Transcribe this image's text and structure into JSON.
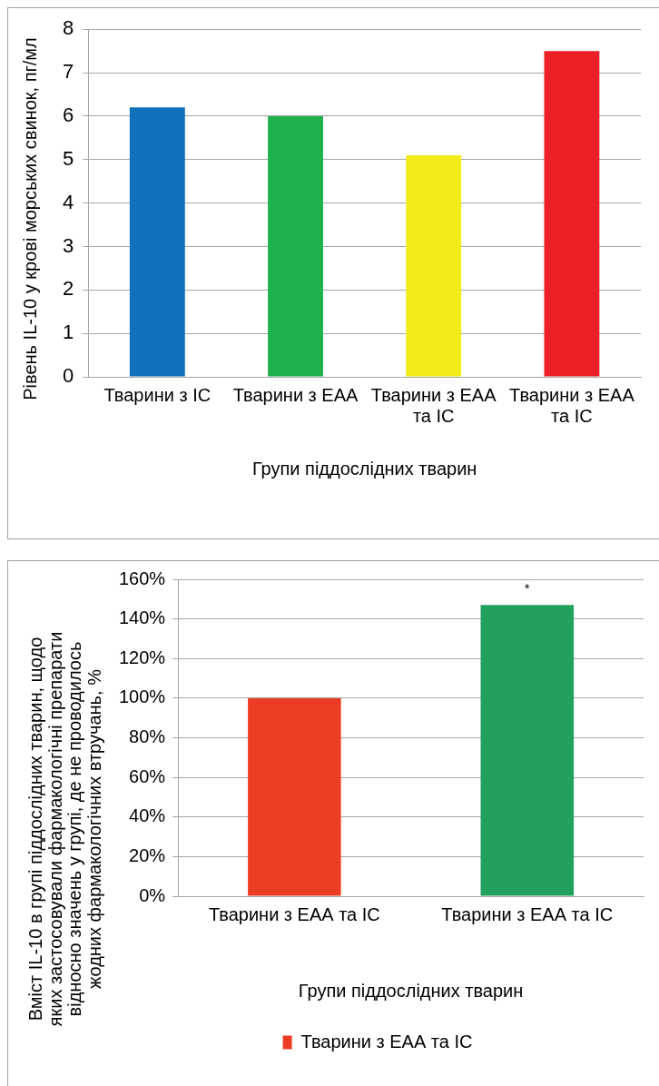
{
  "chart_data": [
    {
      "type": "bar",
      "categories": [
        "Тварини з ІС",
        "Тварини з ЕАА",
        "Тварини з ЕАА та ІС",
        "Тварини з ЕАА та ІС"
      ],
      "values": [
        6.2,
        6.0,
        5.1,
        7.5
      ],
      "colors": [
        "#1170ba",
        "#21b04e",
        "#f2ea19",
        "#ee2027"
      ],
      "xlabel": "Групи піддослідних тварин",
      "ylabel": "Рівень IL-10 у крові морських свинок, пг/мл",
      "ylim": [
        0,
        8
      ],
      "yticks": [
        0,
        1,
        2,
        3,
        4,
        5,
        6,
        7,
        8
      ],
      "grid": "y"
    },
    {
      "type": "bar",
      "categories": [
        "Тварини з ЕАА та ІС",
        "Тварини з ЕАА та ІС"
      ],
      "series": [
        {
          "name": "Тварини з ЕАА та ІС",
          "color": "#ec3d24",
          "colors": [
            "#ec3d24",
            "#22a05e"
          ],
          "values": [
            100,
            147
          ]
        }
      ],
      "xlabel": "Групи піддослідних тварин",
      "ylabel": "Вміст IL-10 в групі піддослідних тварин, щодо яких застосовували фармакологічні препарати відносно значень у групі, де не проводилось жодних фармакологічних втручань, %",
      "ylim": [
        0,
        160
      ],
      "yticks": [
        {
          "value": 0,
          "label": "0%"
        },
        {
          "value": 20,
          "label": "20%"
        },
        {
          "value": 40,
          "label": "40%"
        },
        {
          "value": 60,
          "label": "60%"
        },
        {
          "value": 80,
          "label": "80%"
        },
        {
          "value": 100,
          "label": "100%"
        },
        {
          "value": 120,
          "label": "120%"
        },
        {
          "value": 140,
          "label": "140%"
        },
        {
          "value": 160,
          "label": "160%"
        }
      ],
      "grid": "y",
      "legend": "bottom",
      "annotations": [
        "*"
      ]
    }
  ]
}
